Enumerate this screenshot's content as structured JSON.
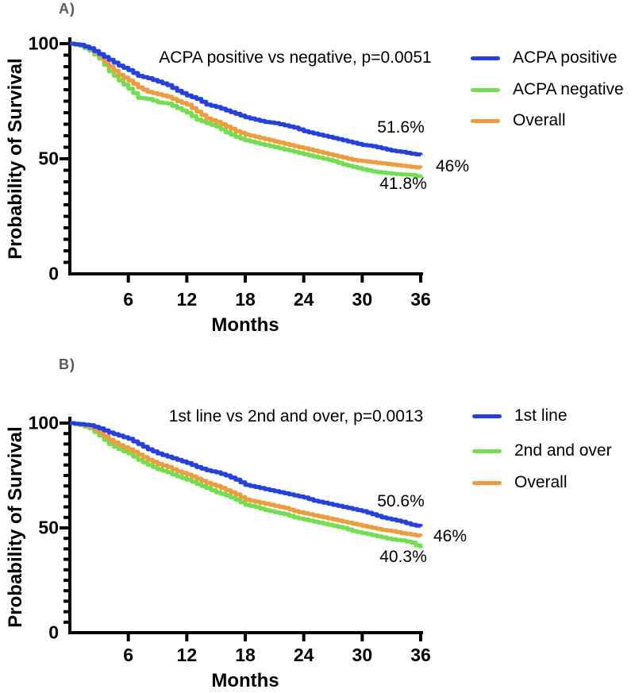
{
  "colors": {
    "background": "#FFFFFF",
    "axis": "#000000",
    "text": "#000000",
    "panel_label_gray": "#58595B",
    "blue": "#2340E8",
    "green": "#6FE14F",
    "orange": "#F09B3C"
  },
  "chart_data": [
    {
      "type": "line",
      "style": "kaplan_meier_step",
      "panel_label": "A)",
      "title": "ACPA positive vs negative, p=0.0051",
      "xlabel": "Months",
      "ylabel": "Probability of Survival",
      "xlim": [
        0,
        36
      ],
      "ylim": [
        0,
        100
      ],
      "x_ticks": [
        6,
        12,
        18,
        24,
        30,
        36
      ],
      "y_ticks": [
        0,
        50,
        100
      ],
      "y_minor_tick_step": 5,
      "grid": "off",
      "legend_position": "right-top",
      "x_months": [
        0,
        1,
        2,
        3,
        4,
        5,
        6,
        7,
        8,
        9,
        10,
        11,
        12,
        13,
        14,
        15,
        16,
        17,
        18,
        19,
        20,
        21,
        22,
        23,
        24,
        25,
        26,
        27,
        28,
        29,
        30,
        31,
        32,
        33,
        34,
        35,
        36
      ],
      "series": [
        {
          "name": "ACPA positive",
          "color": "#2340E8",
          "final_label": "51.6%",
          "values": [
            100,
            99.5,
            98,
            95.5,
            93,
            90.5,
            88.5,
            86,
            85,
            83.5,
            82,
            79.5,
            77.5,
            76,
            73.5,
            72.5,
            71,
            69.5,
            68,
            67,
            66,
            65.5,
            64.5,
            63.5,
            62,
            61,
            60,
            59,
            58,
            57,
            56,
            55.5,
            54.5,
            53.5,
            53,
            52.2,
            51.6
          ]
        },
        {
          "name": "ACPA negative",
          "color": "#6FE14F",
          "final_label": "41.8%",
          "values": [
            100,
            99,
            97,
            93.5,
            88,
            84,
            80.5,
            76.5,
            76,
            74.5,
            74,
            72,
            70,
            67,
            65.5,
            64,
            61.5,
            59.5,
            58,
            57,
            56,
            55,
            54,
            53,
            52,
            51,
            50,
            49,
            47.5,
            46.5,
            45.5,
            44.5,
            44,
            43.5,
            43.2,
            43,
            41.8
          ]
        },
        {
          "name": "Overall",
          "color": "#F09B3C",
          "final_label": "46%",
          "values": [
            100,
            99.3,
            98,
            94.5,
            90,
            86.5,
            84,
            81,
            79,
            78,
            77,
            75,
            73.5,
            70.5,
            67.5,
            66,
            64,
            62,
            60.5,
            59.5,
            58.5,
            57.5,
            56.5,
            55.5,
            54.5,
            53.5,
            52.5,
            51.5,
            50.5,
            49.5,
            49,
            48.5,
            48,
            47.5,
            47,
            46.5,
            46
          ]
        }
      ]
    },
    {
      "type": "line",
      "style": "kaplan_meier_step",
      "panel_label": "B)",
      "title": "1st line vs 2nd and over, p=0.0013",
      "xlabel": "Months",
      "ylabel": "Probability of Survival",
      "xlim": [
        0,
        36
      ],
      "ylim": [
        0,
        100
      ],
      "x_ticks": [
        6,
        12,
        18,
        24,
        30,
        36
      ],
      "y_ticks": [
        0,
        50,
        100
      ],
      "y_minor_tick_step": 5,
      "grid": "off",
      "legend_position": "right-top",
      "x_months": [
        0,
        1,
        2,
        3,
        4,
        5,
        6,
        7,
        8,
        9,
        10,
        11,
        12,
        13,
        14,
        15,
        16,
        17,
        18,
        19,
        20,
        21,
        22,
        23,
        24,
        25,
        26,
        27,
        28,
        29,
        30,
        31,
        32,
        33,
        34,
        35,
        36
      ],
      "series": [
        {
          "name": "1st line",
          "color": "#2340E8",
          "final_label": "50.6%",
          "values": [
            100,
            99.5,
            99,
            97.5,
            95.5,
            94,
            92.5,
            90,
            87.5,
            85.5,
            84,
            82.5,
            81,
            79,
            77.5,
            76.5,
            75,
            73,
            70.5,
            69.5,
            68.5,
            67.5,
            66.5,
            65.5,
            64.5,
            63,
            62,
            61,
            60,
            59,
            58,
            56.5,
            55,
            54,
            53,
            51.5,
            50.6
          ]
        },
        {
          "name": "2nd and over",
          "color": "#6FE14F",
          "final_label": "40.3%",
          "values": [
            100,
            99,
            97.5,
            94,
            90,
            87.5,
            85.5,
            82.5,
            80,
            78,
            76.5,
            74.5,
            73,
            71,
            69,
            67,
            65.5,
            63.5,
            61,
            60,
            58.5,
            57.5,
            56.5,
            55,
            54,
            53,
            52,
            51,
            50,
            48.5,
            47.5,
            46.5,
            45.5,
            44.5,
            44,
            43,
            40.3
          ]
        },
        {
          "name": "Overall",
          "color": "#F09B3C",
          "final_label": "46%",
          "values": [
            100,
            99.3,
            98.5,
            95.5,
            92,
            89.5,
            87.5,
            85,
            82.5,
            80.5,
            79,
            77,
            75.5,
            73.5,
            71.5,
            70,
            68,
            66,
            63.5,
            62.5,
            61.5,
            60.5,
            59.5,
            58,
            57,
            56,
            55,
            54,
            53,
            52,
            51,
            50,
            49,
            48.5,
            47.5,
            46.8,
            46
          ]
        }
      ]
    }
  ]
}
